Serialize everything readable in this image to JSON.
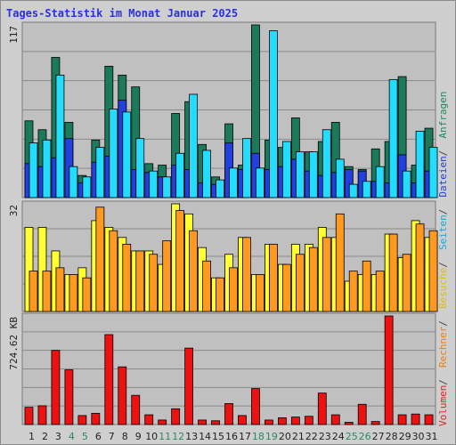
{
  "chart_data": {
    "type": "bar",
    "title": "Tages-Statistik im Monat Januar 2025",
    "categories": [
      "1",
      "2",
      "3",
      "4",
      "5",
      "6",
      "7",
      "8",
      "9",
      "10",
      "11",
      "12",
      "13",
      "14",
      "15",
      "16",
      "17",
      "18",
      "19",
      "20",
      "21",
      "22",
      "23",
      "24",
      "25",
      "26",
      "27",
      "28",
      "29",
      "30",
      "31"
    ],
    "weekend_days": [
      "4",
      "5",
      "11",
      "12",
      "18",
      "19",
      "25",
      "26"
    ],
    "panels": [
      {
        "id": "top",
        "max_label": "117",
        "ylim": [
          0,
          117
        ],
        "series": [
          {
            "name": "Anfragen",
            "color": "#1a7a5a",
            "values": [
              52,
              46,
              95,
              51,
              15,
              39,
              89,
              83,
              75,
              23,
              22,
              57,
              65,
              36,
              14,
              50,
              22,
              117,
              39,
              34,
              54,
              31,
              38,
              51,
              21,
              19,
              33,
              38,
              82,
              22,
              47
            ]
          },
          {
            "name": "Dateien",
            "color": "#2040e0",
            "values": [
              23,
              21,
              27,
              40,
              10,
              24,
              28,
              66,
              19,
              17,
              14,
              22,
              19,
              10,
              9,
              37,
              19,
              30,
              19,
              21,
              26,
              18,
              15,
              17,
              19,
              18,
              11,
              10,
              29,
              10,
              18
            ]
          },
          {
            "name": "Seiten",
            "color": "#22ddff",
            "values": [
              37,
              39,
              83,
              21,
              14,
              34,
              60,
              58,
              40,
              18,
              14,
              30,
              70,
              32,
              12,
              20,
              40,
              20,
              113,
              38,
              31,
              31,
              46,
              26,
              9,
              11,
              21,
              80,
              18,
              45,
              34
            ]
          }
        ]
      },
      {
        "id": "middle",
        "max_label": "32",
        "ylim": [
          0,
          32
        ],
        "series": [
          {
            "name": "Besuche",
            "color": "#ffff33",
            "values": [
              25,
              25,
              18,
              11,
              13,
              27,
              25,
              22,
              18,
              18,
              14,
              32,
              29,
              19,
              10,
              17,
              22,
              11,
              20,
              14,
              20,
              20,
              25,
              22,
              9,
              11,
              11,
              23,
              16,
              27,
              22
            ]
          },
          {
            "name": "Rechner",
            "color": "#ff9920",
            "values": [
              12,
              12,
              13,
              11,
              10,
              31,
              24,
              20,
              18,
              17,
              21,
              30,
              24,
              15,
              10,
              13,
              22,
              11,
              20,
              14,
              17,
              19,
              22,
              29,
              12,
              15,
              12,
              23,
              17,
              26,
              24
            ]
          }
        ]
      },
      {
        "id": "bottom",
        "max_label": "724.62 KB",
        "ylim": [
          0,
          724.62
        ],
        "series": [
          {
            "name": "Volumen",
            "color": "#ee1111",
            "values": [
              115,
              125,
              495,
              365,
              60,
              75,
              600,
              385,
              195,
              65,
              30,
              105,
              510,
              30,
              25,
              140,
              60,
              240,
              30,
              45,
              50,
              55,
              210,
              65,
              15,
              135,
              20,
              724.62,
              65,
              70,
              65
            ]
          }
        ]
      }
    ],
    "right_legend": [
      {
        "label": "Volumen",
        "color": "#dd2222"
      },
      {
        "label": "Rechner",
        "color": "#ee7f10"
      },
      {
        "label": "Besuche",
        "color": "#e0c000"
      },
      {
        "label": "Seiten",
        "color": "#11aadd"
      },
      {
        "label": "Dateien",
        "color": "#2040dd"
      },
      {
        "label": "Anfragen",
        "color": "#1a8a5a"
      }
    ],
    "xlabel": "",
    "grid": true
  }
}
